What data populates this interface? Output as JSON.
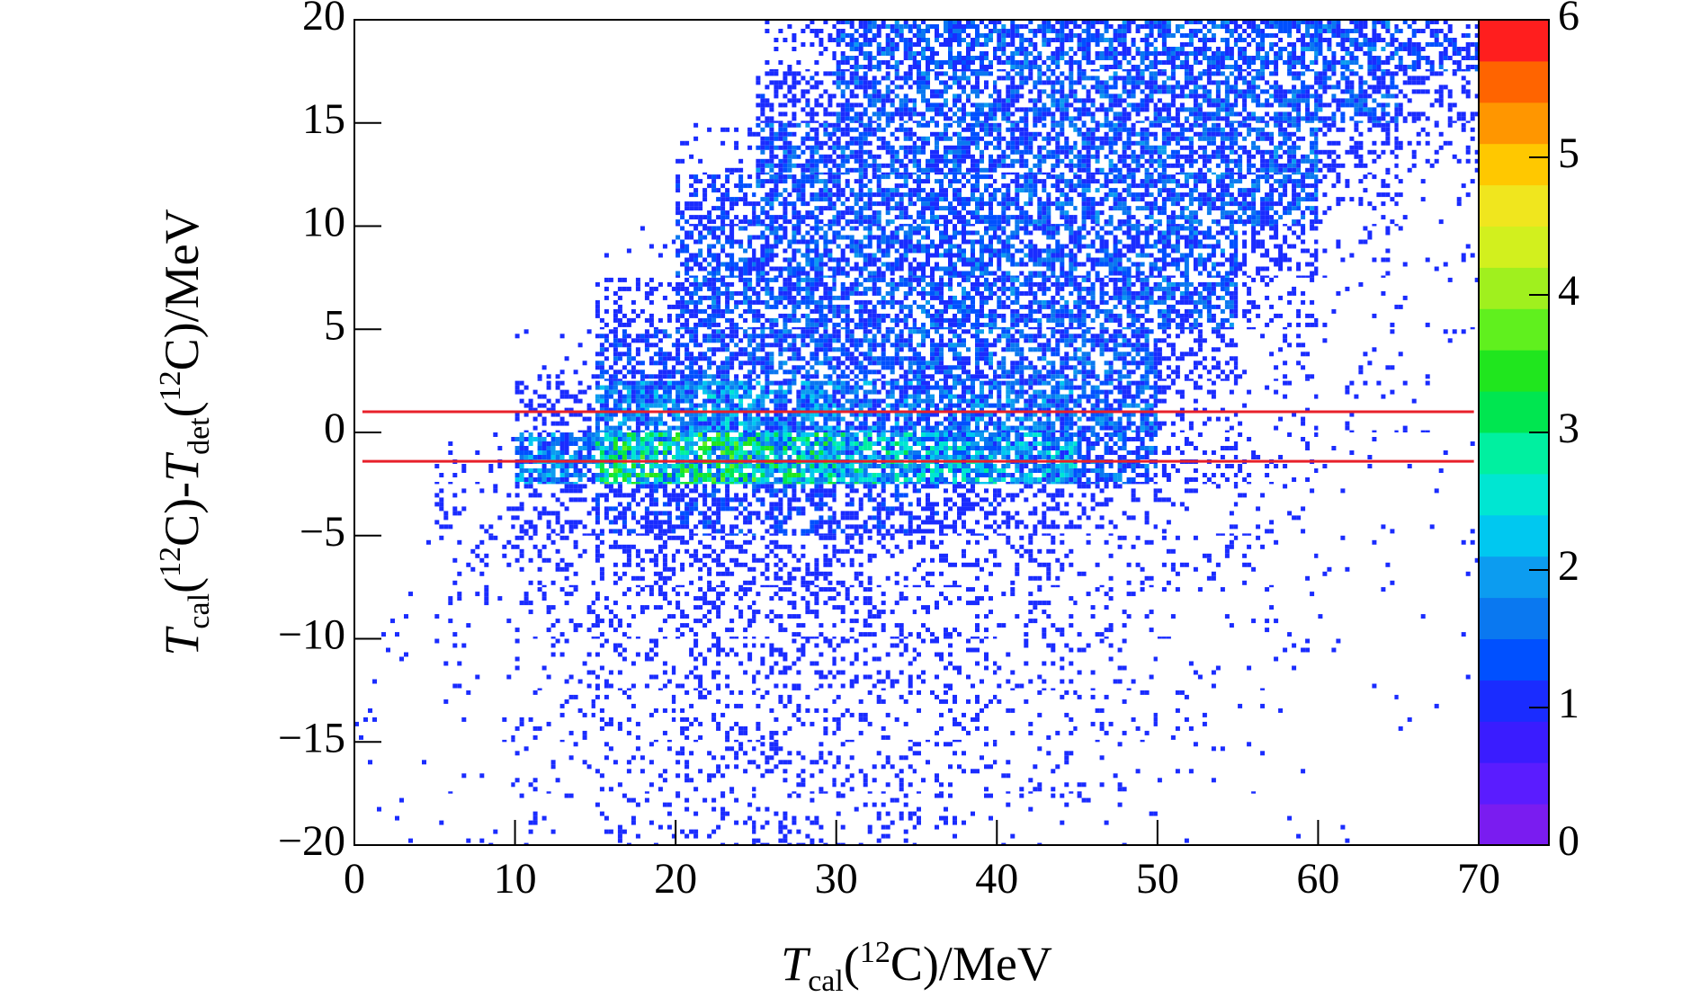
{
  "chart_data": {
    "type": "heatmap2d",
    "x_label": [
      {
        "text": "T",
        "style": "italic"
      },
      {
        "text": "cal",
        "style": "sub"
      },
      {
        "text": "(",
        "style": "normal"
      },
      {
        "text": "12",
        "style": "sup"
      },
      {
        "text": "C)/MeV",
        "style": "normal"
      }
    ],
    "y_label": [
      {
        "text": "T",
        "style": "italic"
      },
      {
        "text": "cal",
        "style": "sub"
      },
      {
        "text": "(",
        "style": "normal"
      },
      {
        "text": "12",
        "style": "sup"
      },
      {
        "text": "C)-",
        "style": "normal"
      },
      {
        "text": "T",
        "style": "italic"
      },
      {
        "text": "det",
        "style": "sub"
      },
      {
        "text": "(",
        "style": "normal"
      },
      {
        "text": "12",
        "style": "sup"
      },
      {
        "text": "C)/MeV",
        "style": "normal"
      }
    ],
    "xlim": [
      0,
      70
    ],
    "xticks": [
      0,
      10,
      20,
      30,
      40,
      50,
      60,
      70
    ],
    "ylim": [
      -20,
      20
    ],
    "yticks": [
      {
        "value": -20,
        "label": "−20"
      },
      {
        "value": -15,
        "label": "−15"
      },
      {
        "value": -10,
        "label": "−10"
      },
      {
        "value": -5,
        "label": "−5"
      },
      0,
      5,
      10,
      15,
      20
    ],
    "zlim": [
      0,
      6
    ],
    "zticks": [
      0,
      1,
      2,
      3,
      4,
      5,
      6
    ],
    "palette": [
      "#7a1cf0",
      "#5a1cff",
      "#3a1cff",
      "#1a2cff",
      "#0050ff",
      "#0a78f0",
      "#0c9cf0",
      "#00c8f0",
      "#00e6d2",
      "#00f0a0",
      "#00e650",
      "#20e61e",
      "#60f01e",
      "#a0f01e",
      "#d2f01e",
      "#f0e61e",
      "#ffc800",
      "#ff9600",
      "#ff6400",
      "#ff1e1e"
    ],
    "xbins": [
      0,
      5,
      10,
      15,
      20,
      25,
      30,
      35,
      40,
      45,
      50,
      55,
      60,
      65,
      70
    ],
    "ybins": [
      -20,
      -17.5,
      -15,
      -12.5,
      -10,
      -7.5,
      -5,
      -2.5,
      0,
      2.5,
      5,
      7.5,
      10,
      12.5,
      15,
      17.5,
      20
    ],
    "z": [
      [
        0.02,
        0.05,
        0.1,
        0.15,
        0.25,
        0.3,
        0.25,
        0.15,
        0.1,
        0.06,
        0.03,
        0.02,
        0.01,
        0
      ],
      [
        0.02,
        0.06,
        0.12,
        0.2,
        0.3,
        0.35,
        0.3,
        0.2,
        0.15,
        0.08,
        0.05,
        0.02,
        0.01,
        0
      ],
      [
        0.03,
        0.08,
        0.15,
        0.25,
        0.35,
        0.4,
        0.35,
        0.25,
        0.2,
        0.12,
        0.06,
        0.03,
        0.02,
        0.01
      ],
      [
        0.03,
        0.1,
        0.2,
        0.3,
        0.4,
        0.45,
        0.4,
        0.3,
        0.25,
        0.15,
        0.08,
        0.05,
        0.02,
        0.01
      ],
      [
        0.03,
        0.12,
        0.25,
        0.4,
        0.5,
        0.5,
        0.45,
        0.4,
        0.3,
        0.2,
        0.12,
        0.06,
        0.03,
        0.02
      ],
      [
        0.02,
        0.15,
        0.35,
        0.5,
        0.6,
        0.6,
        0.55,
        0.5,
        0.35,
        0.25,
        0.15,
        0.08,
        0.04,
        0.02
      ],
      [
        0,
        0.25,
        0.6,
        0.9,
        1.0,
        1.0,
        0.9,
        0.8,
        0.6,
        0.4,
        0.2,
        0.1,
        0.05,
        0.03
      ],
      [
        0,
        0.1,
        1.5,
        2.4,
        2.4,
        2.2,
        2.0,
        1.9,
        1.7,
        1.2,
        0.4,
        0.2,
        0.1,
        0.05
      ],
      [
        0,
        0,
        0.6,
        1.5,
        1.6,
        1.5,
        1.4,
        1.4,
        1.4,
        1.3,
        0.4,
        0.15,
        0.1,
        0.05
      ],
      [
        0,
        0,
        0.1,
        1.0,
        1.2,
        1.2,
        1.2,
        1.2,
        1.2,
        1.2,
        0.7,
        0.15,
        0.08,
        0.05
      ],
      [
        0,
        0,
        0,
        0.5,
        1.2,
        1.2,
        1.2,
        1.2,
        1.2,
        1.2,
        1.2,
        0.3,
        0.1,
        0.05
      ],
      [
        0,
        0,
        0,
        0.1,
        1.1,
        1.2,
        1.2,
        1.2,
        1.2,
        1.2,
        1.2,
        0.6,
        0.15,
        0.1
      ],
      [
        0,
        0,
        0,
        0,
        0.9,
        1.2,
        1.2,
        1.2,
        1.2,
        1.2,
        1.2,
        1.2,
        0.3,
        0.1
      ],
      [
        0,
        0,
        0,
        0,
        0.2,
        1.2,
        1.2,
        1.2,
        1.2,
        1.2,
        1.2,
        1.2,
        0.6,
        0.2
      ],
      [
        0,
        0,
        0,
        0,
        0,
        0.8,
        1.2,
        1.2,
        1.2,
        1.2,
        1.2,
        1.2,
        1.2,
        0.6
      ],
      [
        0,
        0,
        0,
        0,
        0,
        0.3,
        1.2,
        1.2,
        1.2,
        1.2,
        1.2,
        1.2,
        1.2,
        1.0
      ]
    ],
    "cut_lines": {
      "y": [
        1,
        -1.4
      ],
      "x": [
        0.5,
        69.7
      ],
      "color": "#e8202a"
    }
  }
}
